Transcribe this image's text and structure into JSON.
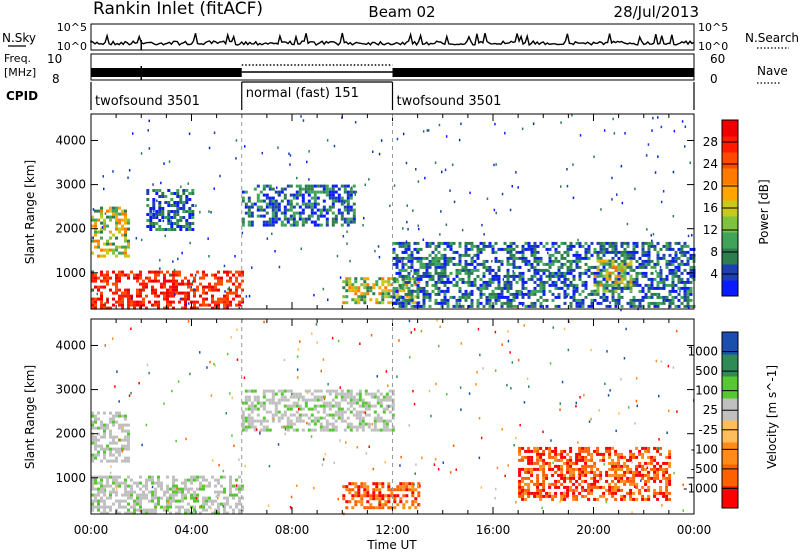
{
  "header": {
    "station": "Rankin Inlet (fitACF)",
    "beam": "Beam 02",
    "date": "28/Jul/2013"
  },
  "status_panel": {
    "nsky_label": "N.Sky",
    "nsky_tick_top": "10^5",
    "nsky_tick_bottom": "10^0",
    "nsearch_label": "N.Search",
    "nsearch_tick_top": "10^5",
    "nsearch_tick_bottom": "10^0",
    "freq_label_1": "Freq.",
    "freq_label_2": "[MHz]",
    "freq_ticks": [
      "10",
      "8"
    ],
    "nave_label": "Nave",
    "nave_ticks": [
      "60",
      "0"
    ],
    "cpid_label": "CPID",
    "programs": [
      {
        "name": "twofsound 3501",
        "start_hour": 0,
        "end_hour": 6
      },
      {
        "name": "normal (fast) 151",
        "start_hour": 6,
        "end_hour": 12
      },
      {
        "name": "twofsound 3501",
        "start_hour": 12,
        "end_hour": 24
      }
    ]
  },
  "chart_data": [
    {
      "type": "heatmap",
      "title": "Power",
      "xlabel": "",
      "ylabel": "Slant Range [km]",
      "x_ticks": [],
      "x_range_hours": [
        0,
        24
      ],
      "y_ticks": [
        1000,
        2000,
        3000,
        4000
      ],
      "ylim": [
        180,
        4600
      ],
      "colorbar": {
        "label": "Power [dB]",
        "range": [
          0,
          32
        ],
        "ticks": [
          "4",
          "8",
          "12",
          "16",
          "20",
          "24",
          "28"
        ],
        "colors": [
          "#0a1cff",
          "#1d3fb0",
          "#2e7d4f",
          "#3fa35a",
          "#7ec23e",
          "#c8c81e",
          "#ffa500",
          "#ff7a00",
          "#ff4a00",
          "#ff1a00",
          "#ee0000"
        ]
      },
      "echo_regions": [
        {
          "start_hour": 0.0,
          "end_hour": 6.0,
          "range_min_km": 200,
          "range_max_km": 1050,
          "level": "high"
        },
        {
          "start_hour": 0.0,
          "end_hour": 1.5,
          "range_min_km": 1400,
          "range_max_km": 2500,
          "level": "medium"
        },
        {
          "start_hour": 2.2,
          "end_hour": 4.0,
          "range_min_km": 2000,
          "range_max_km": 2900,
          "level": "low"
        },
        {
          "start_hour": 6.0,
          "end_hour": 10.5,
          "range_min_km": 2100,
          "range_max_km": 3000,
          "level": "low"
        },
        {
          "start_hour": 10.0,
          "end_hour": 13.0,
          "range_min_km": 300,
          "range_max_km": 900,
          "level": "medium"
        },
        {
          "start_hour": 12.0,
          "end_hour": 24.0,
          "range_min_km": 250,
          "range_max_km": 1700,
          "level": "low"
        },
        {
          "start_hour": 20.0,
          "end_hour": 21.5,
          "range_min_km": 600,
          "range_max_km": 1300,
          "level": "medium"
        }
      ]
    },
    {
      "type": "heatmap",
      "title": "Velocity",
      "xlabel": "Time UT",
      "ylabel": "Slant Range [km]",
      "x_ticks": [
        "00:00",
        "04:00",
        "08:00",
        "12:00",
        "16:00",
        "20:00",
        "00:00"
      ],
      "x_range_hours": [
        0,
        24
      ],
      "y_ticks": [
        1000,
        2000,
        3000,
        4000
      ],
      "ylim": [
        180,
        4600
      ],
      "colorbar": {
        "label": "Velocity [m s^-1]",
        "ticks": [
          "-1000",
          "-500",
          "-100",
          "-25",
          "25",
          "100",
          "500",
          "1000"
        ],
        "colors": [
          "#ff0000",
          "#ff6000",
          "#ff8c1a",
          "#ffbe5c",
          "#c0c0c0",
          "#58c832",
          "#2e8b57",
          "#1a4fb0"
        ]
      },
      "echo_regions": [
        {
          "start_hour": 0.0,
          "end_hour": 6.0,
          "range_min_km": 200,
          "range_max_km": 1050,
          "velocity_class": "ground scatter"
        },
        {
          "start_hour": 0.0,
          "end_hour": 1.5,
          "range_min_km": 1400,
          "range_max_km": 2500,
          "velocity_class": "ground scatter"
        },
        {
          "start_hour": 6.0,
          "end_hour": 12.0,
          "range_min_km": 2100,
          "range_max_km": 3000,
          "velocity_class": "ground scatter"
        },
        {
          "start_hour": 10.0,
          "end_hour": 13.0,
          "range_min_km": 300,
          "range_max_km": 900,
          "velocity_class": "toward"
        },
        {
          "start_hour": 17.0,
          "end_hour": 23.0,
          "range_min_km": 500,
          "range_max_km": 1700,
          "velocity_class": "toward"
        }
      ]
    }
  ]
}
